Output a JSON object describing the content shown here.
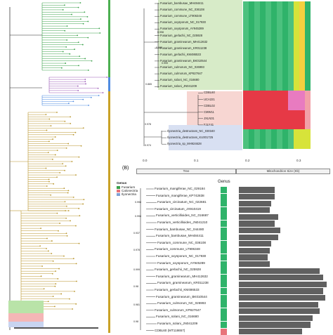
{
  "panelB": {
    "tag": "(B)"
  },
  "axis_top": {
    "ticks": [
      "0.0",
      "0.1",
      "0.2",
      "0.3"
    ]
  },
  "header_boxes": {
    "tree": "Tree",
    "mito": "Mitochondrion Size (Kb)"
  },
  "genus_legend": {
    "title": "Genus",
    "items": [
      {
        "label": "Fusarium",
        "color": "#3aa14a"
      },
      {
        "label": "Calonectria",
        "color": "#e8747a"
      },
      {
        "label": "Ilyonectria",
        "color": "#7fa2d6"
      }
    ]
  },
  "genus_column_header": "Genus",
  "top_labels": [
    "Fusarium_bambusae_MH484411",
    "Fusarium_commune_NC_036108",
    "Fusarium_commune_LT906348",
    "Fusarium_oxysporum_NC_017930",
    "Fusarium_oxysporum_AY945289",
    "Fusarium_gerlachii_NC_025928",
    "Fusarium_graminearum_MH412632",
    "Fusarium_graminearum_KR011238",
    "Fusarium_gerlachii_KM486533",
    "Fusarium_graminearum_BK010544",
    "Fusarium_culmorum_NC_026993",
    "Fusarium_culmorum_KP827647",
    "Fusarium_solani_NC_016680",
    "Fusarium_solani_JN041209",
    "CDBL60",
    "UCA221",
    "CDBL02",
    "CMW11",
    "JXLN31",
    "FJLY41",
    "Ilyonectria_destructans_NC_030340",
    "Ilyonectria_destructans_KU001725",
    "Ilyonectria_sp_MH924628"
  ],
  "top_bootstrap": [
    "0.998",
    "0.982",
    "0.999",
    "0.865",
    "0.978",
    "0.974"
  ],
  "bottom_labels": [
    "Fusarium_mangiferae_NC_029184",
    "Fusarium_mangiferae_KP742838",
    "Fusarium_circinatum_NC_022681",
    "Fusarium_circinatum_JX910419",
    "Fusarium_verticillioides_NC_016687",
    "Fusarium_verticillioides_JN041210",
    "Fusarium_bambusae_NC_044480",
    "Fusarium_bambusae_MH484411",
    "Fusarium_commune_NC_036108",
    "Fusarium_commune_LT906348",
    "Fusarium_oxysporum_NC_017930",
    "Fusarium_oxysporum_AY945289",
    "Fusarium_gerlachii_NC_025928",
    "Fusarium_graminearum_MH412632",
    "Fusarium_graminearum_KR011238",
    "Fusarium_gerlachii_KM486533",
    "Fusarium_graminearum_BK010544",
    "Fusarium_culmorum_NC_026993",
    "Fusarium_culmorum_KP827647",
    "Fusarium_solani_NC_016680",
    "Fusarium_solani_JN041209",
    "CDBL60 (MT118657)"
  ],
  "bottom_bootstrap": [
    "0.998",
    "0.998",
    "0.937",
    "0.978",
    "0.999",
    "0.98",
    "0.981",
    "0.98"
  ],
  "chart_data": {
    "type": "bar",
    "categories": [
      "Fusarium_mangiferae_NC_029184",
      "Fusarium_mangiferae_KP742838",
      "Fusarium_circinatum_NC_022681",
      "Fusarium_circinatum_JX910419",
      "Fusarium_verticillioides_NC_016687",
      "Fusarium_verticillioides_JN041210",
      "Fusarium_bambusae_NC_044480",
      "Fusarium_bambusae_MH484411",
      "Fusarium_commune_NC_036108",
      "Fusarium_commune_LT906348",
      "Fusarium_oxysporum_NC_017930",
      "Fusarium_oxysporum_AY945289",
      "Fusarium_gerlachii_NC_025928",
      "Fusarium_graminearum_MH412632",
      "Fusarium_graminearum_KR011238",
      "Fusarium_gerlachii_KM486533",
      "Fusarium_graminearum_BK010544",
      "Fusarium_culmorum_NC_026993",
      "Fusarium_culmorum_KP827647",
      "Fusarium_solani_NC_016680",
      "Fusarium_solani_JN041209",
      "CDBL60 (MT118657)"
    ],
    "genus": [
      "Fusarium",
      "Fusarium",
      "Fusarium",
      "Fusarium",
      "Fusarium",
      "Fusarium",
      "Fusarium",
      "Fusarium",
      "Fusarium",
      "Fusarium",
      "Fusarium",
      "Fusarium",
      "Fusarium",
      "Fusarium",
      "Fusarium",
      "Fusarium",
      "Fusarium",
      "Fusarium",
      "Fusarium",
      "Fusarium",
      "Fusarium",
      "Calonectria"
    ],
    "values": [
      0.2,
      0.2,
      0.18,
      0.17,
      0.22,
      0.2,
      0.23,
      0.22,
      0.18,
      0.17,
      0.16,
      0.17,
      0.45,
      0.47,
      0.49,
      0.47,
      0.48,
      0.44,
      0.45,
      0.41,
      0.4,
      0.35
    ],
    "xlim": [
      0,
      0.5
    ],
    "xlabel": "Mitochondrion Size (Kb)",
    "title": ""
  },
  "heatmap_colors": [
    "#2fb36a",
    "#4cc17e",
    "#e63946",
    "#d7e33a",
    "#f4d03f",
    "#e87bc0"
  ]
}
